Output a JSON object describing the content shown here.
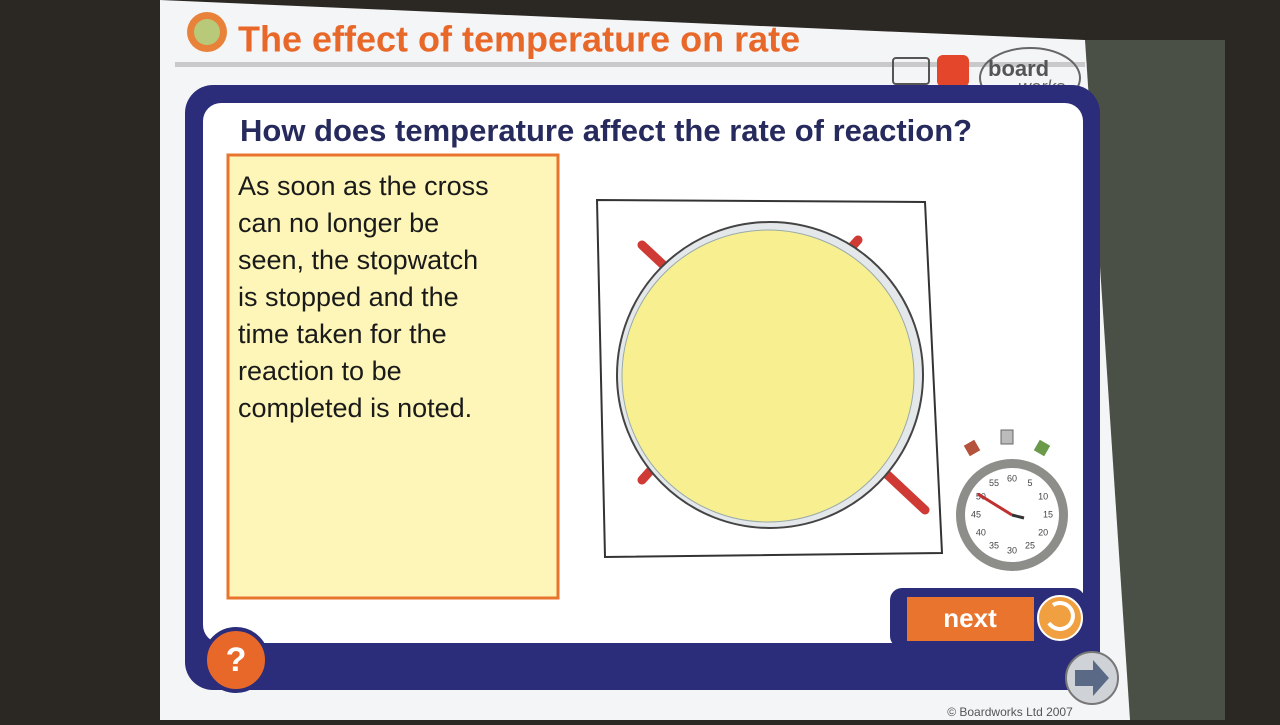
{
  "header": {
    "title": "The effect of temperature on rate",
    "logo": [
      "board",
      "works"
    ]
  },
  "question": "How does temperature affect the rate of reaction?",
  "text_box": {
    "lines": [
      "As soon as the cross",
      "can no longer be",
      "seen, the stopwatch",
      "is stopped and the",
      "time taken for the",
      "reaction to be",
      "completed is noted."
    ]
  },
  "stopwatch": {
    "labels": [
      "60",
      "5",
      "10",
      "15",
      "20",
      "25",
      "30",
      "35",
      "40",
      "45",
      "50",
      "55"
    ]
  },
  "buttons": {
    "next": "next",
    "help": "?"
  },
  "footer": "© Boardworks Ltd 2007"
}
